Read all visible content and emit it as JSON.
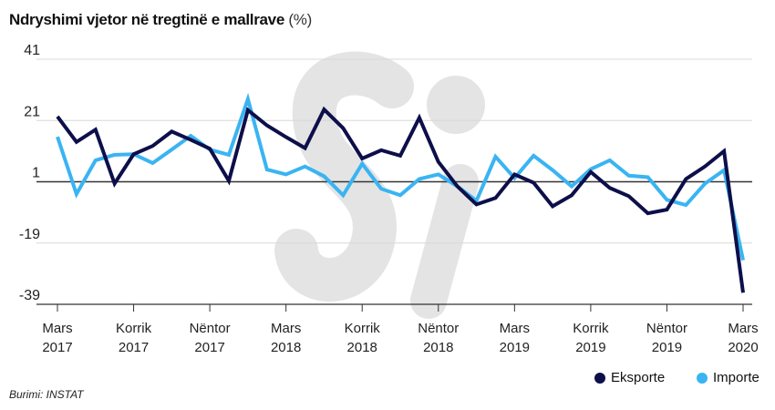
{
  "chart_data": {
    "type": "line",
    "title": "Ndryshimi vjetor në tregtinë e mallrave",
    "unit": "(%)",
    "source": "Burimi: INSTAT",
    "ylim": [
      -39,
      41
    ],
    "yticks": [
      "41",
      "21",
      "1",
      "-19",
      "-39"
    ],
    "ytick_values": [
      41,
      21,
      1,
      -19,
      -39
    ],
    "xtick_labels": [
      [
        "Mars",
        "2017"
      ],
      [
        "Korrik",
        "2017"
      ],
      [
        "Nëntor",
        "2017"
      ],
      [
        "Mars",
        "2018"
      ],
      [
        "Korrik",
        "2018"
      ],
      [
        "Nëntor",
        "2018"
      ],
      [
        "Mars",
        "2019"
      ],
      [
        "Korrik",
        "2019"
      ],
      [
        "Nëntor",
        "2019"
      ],
      [
        "Mars",
        "2020"
      ]
    ],
    "x_months": 37,
    "series": [
      {
        "name": "Eksporte",
        "color": "#0d0f4a",
        "values": [
          22.3,
          14,
          18,
          0.4,
          10,
          12.7,
          17.4,
          14.7,
          11.8,
          1.3,
          24.4,
          19.4,
          15.6,
          12,
          24.6,
          18.5,
          8.6,
          11.3,
          9.5,
          21.9,
          7.5,
          -0.5,
          -6.4,
          -4.3,
          3.4,
          0.7,
          -7,
          -3.4,
          4.2,
          -1,
          -3.7,
          -9.3,
          -8.1,
          1.9,
          6,
          11,
          -35.2
        ]
      },
      {
        "name": "Importe",
        "color": "#3ab4f2",
        "values": [
          15.7,
          -3,
          8,
          9.8,
          10,
          7.1,
          11.5,
          16,
          11.5,
          9.8,
          28,
          5,
          3.4,
          6,
          2.8,
          -3.4,
          6.9,
          -1.3,
          -3.4,
          1.9,
          3.4,
          -0.5,
          -5.2,
          9.2,
          2.2,
          9.5,
          4.8,
          -0.5,
          5.1,
          8,
          3,
          2.5,
          -4.9,
          -6.6,
          0.4,
          4.8,
          -24.6
        ]
      }
    ]
  }
}
